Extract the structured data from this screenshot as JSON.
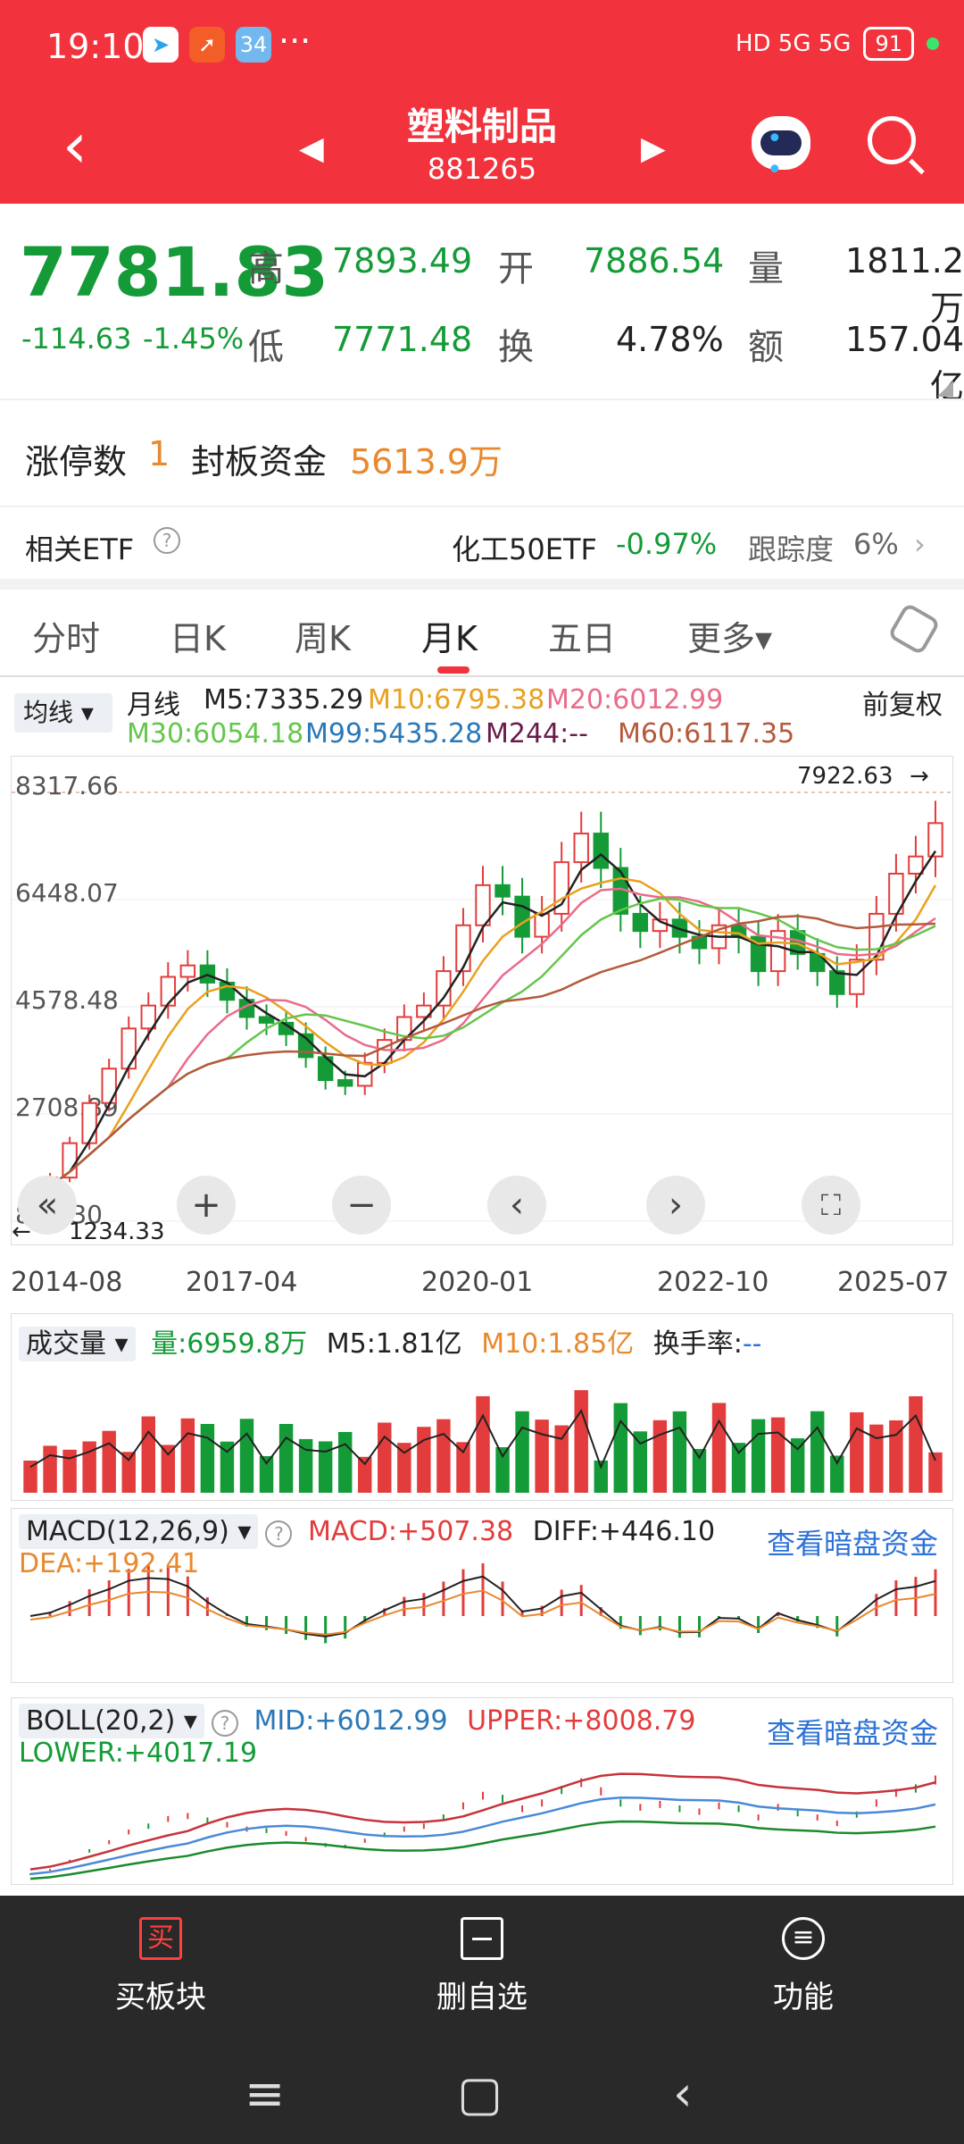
{
  "status_bar": {
    "time": "19:10",
    "battery": "91",
    "app_badge": "34",
    "dots": "···",
    "network": "HD 5G 5G"
  },
  "title_bar": {
    "title": "塑料制品",
    "code": "881265"
  },
  "quote": {
    "price": "7781.83",
    "change": "-114.63",
    "change_pct": "-1.45%",
    "high_label": "高",
    "high": "7893.49",
    "open_label": "开",
    "open": "7886.54",
    "volume_label": "量",
    "volume": "1811.2万",
    "low_label": "低",
    "low": "7771.48",
    "turnover_label": "换",
    "turnover": "4.78%",
    "amount_label": "额",
    "amount": "157.04亿"
  },
  "limit_up": {
    "label": "涨停数",
    "count": "1",
    "fund_label": "封板资金",
    "fund": "5613.9万"
  },
  "etf": {
    "label": "相关ETF",
    "name": "化工50ETF",
    "change": "-0.97%",
    "track_label": "跟踪度",
    "track": "6%"
  },
  "tabs": [
    "分时",
    "日K",
    "周K",
    "月K",
    "五日",
    "更多▾"
  ],
  "active_tab": "月K",
  "ma": {
    "avg_button": "均线 ▾",
    "period": "月线",
    "adjust": "前复权",
    "m5": "M5:7335.29",
    "m10": "M10:6795.38",
    "m20": "M20:6012.99",
    "m30": "M30:6054.18",
    "m99": "M99:5435.28",
    "m244": "M244:--",
    "m60": "M60:6117.35"
  },
  "colors": {
    "up": "#e33c3c",
    "down": "#149b37",
    "m5": "#222222",
    "m10": "#e9a11f",
    "m20": "#ea6b8a",
    "m30": "#64c64b",
    "m99": "#2a78b8",
    "m60": "#b45a3c",
    "orange": "#e9882d",
    "blue_link": "#2d73d6"
  },
  "chart_data": [
    {
      "type": "candlestick",
      "period": "monthly",
      "x": [
        "2014-08",
        "2017-04",
        "2020-01",
        "2022-10",
        "2025-07"
      ],
      "y_ticks": [
        "8317.66",
        "6448.07",
        "4578.48",
        "2708.89",
        "839.30"
      ],
      "ylim": [
        839.3,
        8317.66
      ],
      "max_label": "7922.63",
      "min_label": "1234.33",
      "close_series": [
        1300,
        1600,
        2200,
        2900,
        3500,
        4200,
        4600,
        5100,
        5300,
        5000,
        4700,
        4400,
        4300,
        4100,
        3700,
        3300,
        3200,
        3600,
        4000,
        4400,
        4600,
        5200,
        6000,
        6700,
        6500,
        5800,
        6200,
        7100,
        7600,
        7000,
        6200,
        5900,
        6100,
        5800,
        5600,
        6000,
        5800,
        5200,
        5900,
        5500,
        5200,
        4800,
        5400,
        6200,
        6900,
        7200,
        7782
      ]
    },
    {
      "type": "bar",
      "title": "成交量",
      "labels": [
        "量:6959.8万",
        "M5:1.81亿",
        "M10:1.85亿",
        "换手率:--"
      ]
    },
    {
      "type": "line",
      "title": "MACD(12,26,9)",
      "labels": [
        "MACD:+507.38",
        "DIFF:+446.10",
        "DEA:+192.41"
      ]
    },
    {
      "type": "line",
      "title": "BOLL(20,2)",
      "labels": [
        "MID:+6012.99",
        "UPPER:+8008.79",
        "LOWER:+4017.19"
      ]
    }
  ],
  "volume_panel": {
    "title": "成交量 ▾",
    "vol": "量:6959.8万",
    "m5": "M5:1.81亿",
    "m10": "M10:1.85亿",
    "turnover": "换手率:",
    "turnover_val": "--"
  },
  "macd_panel": {
    "title": "MACD(12,26,9) ▾",
    "macd": "MACD:+507.38",
    "diff": "DIFF:+446.10",
    "dea": "DEA:+192.41",
    "link": "查看暗盘资金"
  },
  "boll_panel": {
    "title": "BOLL(20,2) ▾",
    "mid": "MID:+6012.99",
    "upper": "UPPER:+8008.79",
    "lower": "LOWER:+4017.19",
    "link": "查看暗盘资金"
  },
  "bottom_nav": {
    "buy": "买板块",
    "buy_icon": "买",
    "remove": "删自选",
    "func": "功能"
  }
}
